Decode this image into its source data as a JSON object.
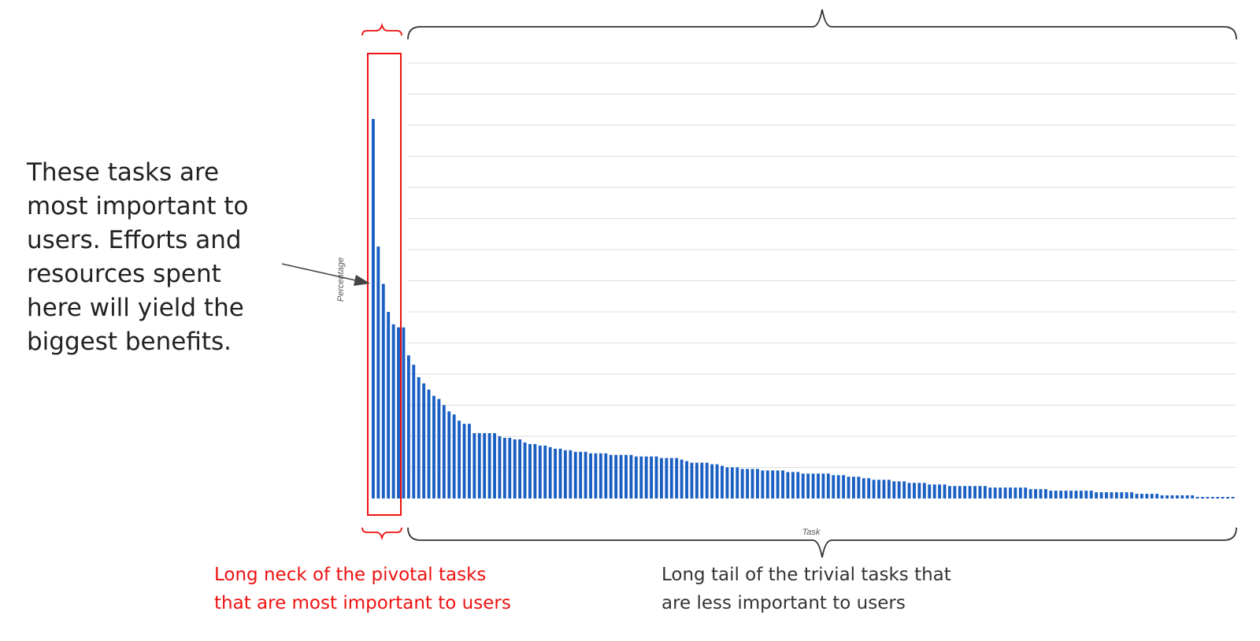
{
  "annotation": {
    "lines": [
      "These tasks are",
      "most important to",
      "users. Efforts and",
      "resources spent",
      "here will yield the",
      "biggest benefits."
    ]
  },
  "captions": {
    "neck": [
      "Long neck of the pivotal tasks",
      "that are most important to users"
    ],
    "tail": [
      "Long tail of the trivial tasks that",
      "are less important to users"
    ]
  },
  "colors": {
    "bar": "#1a5fc4",
    "highlight": "#ee1111",
    "brace": "#333333",
    "grid": "#dddddd"
  },
  "chart_data": {
    "type": "bar",
    "title": "",
    "xlabel": "Task",
    "ylabel": "Percentage",
    "ylim": [
      0,
      14
    ],
    "grid": true,
    "legend": "none",
    "highlighted_range": [
      0,
      4
    ],
    "values": [
      12.2,
      8.1,
      6.9,
      6.0,
      5.6,
      5.5,
      5.5,
      4.6,
      4.3,
      3.9,
      3.7,
      3.5,
      3.3,
      3.2,
      3.0,
      2.8,
      2.7,
      2.5,
      2.4,
      2.4,
      2.1,
      2.1,
      2.1,
      2.1,
      2.1,
      2.0,
      1.95,
      1.95,
      1.9,
      1.9,
      1.8,
      1.75,
      1.75,
      1.7,
      1.7,
      1.65,
      1.6,
      1.6,
      1.55,
      1.55,
      1.5,
      1.5,
      1.5,
      1.45,
      1.45,
      1.45,
      1.45,
      1.4,
      1.4,
      1.4,
      1.4,
      1.4,
      1.35,
      1.35,
      1.35,
      1.35,
      1.35,
      1.3,
      1.3,
      1.3,
      1.3,
      1.25,
      1.2,
      1.15,
      1.15,
      1.15,
      1.15,
      1.1,
      1.1,
      1.05,
      1.0,
      1.0,
      1.0,
      0.95,
      0.95,
      0.95,
      0.95,
      0.9,
      0.9,
      0.9,
      0.9,
      0.9,
      0.85,
      0.85,
      0.85,
      0.8,
      0.8,
      0.8,
      0.8,
      0.8,
      0.8,
      0.75,
      0.75,
      0.75,
      0.7,
      0.7,
      0.7,
      0.65,
      0.65,
      0.6,
      0.6,
      0.6,
      0.6,
      0.55,
      0.55,
      0.55,
      0.5,
      0.5,
      0.5,
      0.5,
      0.45,
      0.45,
      0.45,
      0.45,
      0.4,
      0.4,
      0.4,
      0.4,
      0.4,
      0.4,
      0.4,
      0.4,
      0.35,
      0.35,
      0.35,
      0.35,
      0.35,
      0.35,
      0.35,
      0.35,
      0.3,
      0.3,
      0.3,
      0.3,
      0.25,
      0.25,
      0.25,
      0.25,
      0.25,
      0.25,
      0.25,
      0.25,
      0.25,
      0.2,
      0.2,
      0.2,
      0.2,
      0.2,
      0.2,
      0.2,
      0.2,
      0.15,
      0.15,
      0.15,
      0.15,
      0.15,
      0.1,
      0.1,
      0.1,
      0.1,
      0.1,
      0.1,
      0.1,
      0.05,
      0.05,
      0.05,
      0.05,
      0.05,
      0.05,
      0.05,
      0.05
    ]
  }
}
